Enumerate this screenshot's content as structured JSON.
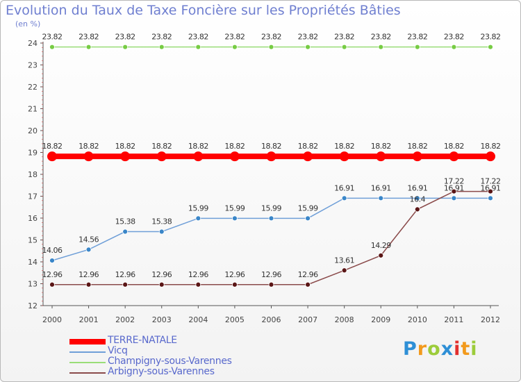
{
  "title": "Evolution du Taux de Taxe Foncière sur les Propriétés Bâties",
  "unit_label": "(en %)",
  "logo": {
    "text": "Proxiti"
  },
  "chart_data": {
    "type": "line",
    "x": [
      "2000",
      "2001",
      "2002",
      "2003",
      "2004",
      "2005",
      "2006",
      "2007",
      "2008",
      "2009",
      "2010",
      "2011",
      "2012"
    ],
    "ylim": [
      12,
      24
    ],
    "yticks": [
      12,
      13,
      14,
      15,
      16,
      17,
      18,
      19,
      20,
      21,
      22,
      23,
      24
    ],
    "grid": false,
    "legend_position": "bottom-left",
    "series": [
      {
        "name": "TERRE-NATALE",
        "color": "#ff0000",
        "emphasis": true,
        "values": [
          18.82,
          18.82,
          18.82,
          18.82,
          18.82,
          18.82,
          18.82,
          18.82,
          18.82,
          18.82,
          18.82,
          18.82,
          18.82
        ],
        "labels": [
          "18.82",
          "18.82",
          "18.82",
          "18.82",
          "18.82",
          "18.82",
          "18.82",
          "18.82",
          "18.82",
          "18.82",
          "18.82",
          "18.82",
          "18.82"
        ]
      },
      {
        "name": "Vicq",
        "color": "#6f9fd8",
        "marker_color": "#3a86c8",
        "values": [
          14.06,
          14.56,
          15.38,
          15.38,
          15.99,
          15.99,
          15.99,
          15.99,
          16.91,
          16.91,
          16.91,
          16.91,
          16.91
        ],
        "labels": [
          "14.06",
          "14.56",
          "15.38",
          "15.38",
          "15.99",
          "15.99",
          "15.99",
          "15.99",
          "16.91",
          "16.91",
          "16.91",
          "16.91",
          "16.91"
        ]
      },
      {
        "name": "Champigny-sous-Varennes",
        "color": "#99dd77",
        "marker_color": "#77cc44",
        "values": [
          23.82,
          23.82,
          23.82,
          23.82,
          23.82,
          23.82,
          23.82,
          23.82,
          23.82,
          23.82,
          23.82,
          23.82,
          23.82
        ],
        "labels": [
          "23.82",
          "23.82",
          "23.82",
          "23.82",
          "23.82",
          "23.82",
          "23.82",
          "23.82",
          "23.82",
          "23.82",
          "23.82",
          "23.82",
          "23.82"
        ]
      },
      {
        "name": "Arbigny-sous-Varennes",
        "color": "#8a4a4a",
        "marker_color": "#5a1515",
        "values": [
          12.96,
          12.96,
          12.96,
          12.96,
          12.96,
          12.96,
          12.96,
          12.96,
          13.61,
          14.29,
          16.4,
          17.22,
          17.22
        ],
        "labels": [
          "12.96",
          "12.96",
          "12.96",
          "12.96",
          "12.96",
          "12.96",
          "12.96",
          "12.96",
          "13.61",
          "14.29",
          "16.4",
          "17.22",
          "17.22"
        ]
      }
    ]
  }
}
